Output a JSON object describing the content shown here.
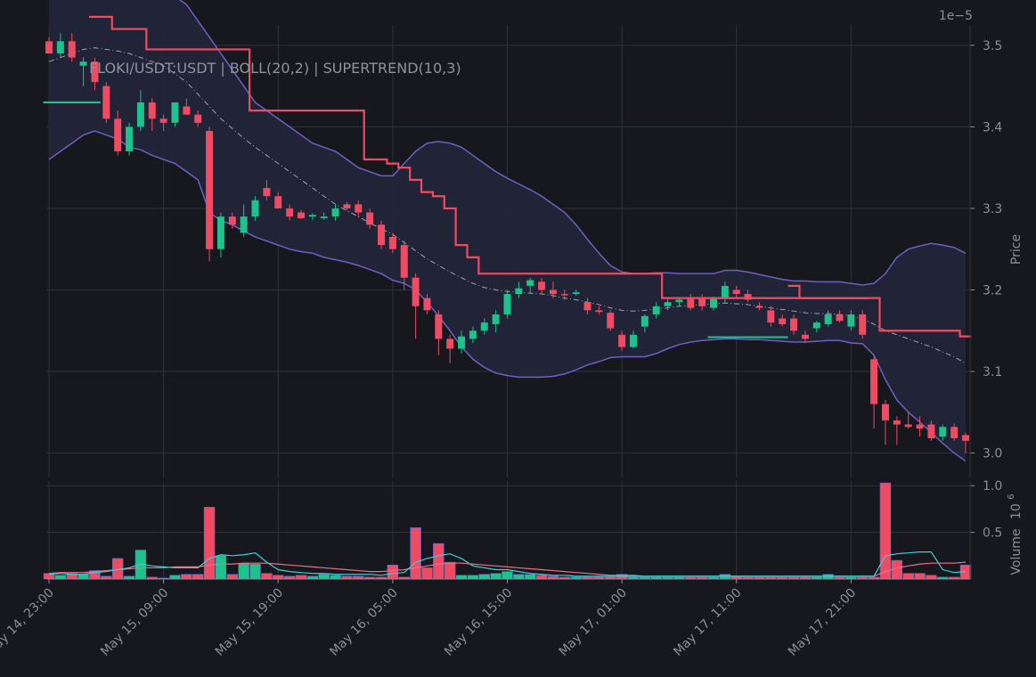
{
  "chart_data": {
    "type": "candlestick",
    "title": "FLOKI/USDT:USDT | BOLL(20,2) | SUPERTREND(10,3)",
    "price_panel": {
      "ylabel": "Price",
      "scale_note": "1e−5",
      "ylim": [
        2.97,
        3.525
      ],
      "yticks": [
        "3.0",
        "3.1",
        "3.2",
        "3.3",
        "3.4",
        "3.5"
      ]
    },
    "volume_panel": {
      "ylabel": "Volume",
      "scale_note": "10",
      "scale_exp": "6",
      "ylim": [
        0,
        1.05
      ],
      "yticks": [
        "0.5",
        "1.0"
      ]
    },
    "xlabels": [
      "May 14, 23:00",
      "May 15, 09:00",
      "May 15, 19:00",
      "May 16, 05:00",
      "May 16, 15:00",
      "May 17, 01:00",
      "May 17, 11:00",
      "May 17, 21:00"
    ],
    "xlabel_index": [
      0,
      10,
      20,
      30,
      40,
      50,
      60,
      70
    ],
    "candles": [
      [
        3.505,
        3.51,
        3.49,
        3.49
      ],
      [
        3.49,
        3.515,
        3.485,
        3.505
      ],
      [
        3.505,
        3.515,
        3.48,
        3.485
      ],
      [
        3.475,
        3.485,
        3.45,
        3.48
      ],
      [
        3.48,
        3.485,
        3.445,
        3.455
      ],
      [
        3.45,
        3.455,
        3.405,
        3.41
      ],
      [
        3.41,
        3.42,
        3.365,
        3.37
      ],
      [
        3.37,
        3.405,
        3.365,
        3.4
      ],
      [
        3.4,
        3.445,
        3.395,
        3.43
      ],
      [
        3.43,
        3.435,
        3.395,
        3.41
      ],
      [
        3.41,
        3.415,
        3.395,
        3.405
      ],
      [
        3.405,
        3.43,
        3.4,
        3.43
      ],
      [
        3.425,
        3.435,
        3.415,
        3.415
      ],
      [
        3.415,
        3.42,
        3.4,
        3.405
      ],
      [
        3.395,
        3.4,
        3.235,
        3.25
      ],
      [
        3.25,
        3.295,
        3.24,
        3.29
      ],
      [
        3.29,
        3.295,
        3.275,
        3.28
      ],
      [
        3.27,
        3.305,
        3.265,
        3.29
      ],
      [
        3.29,
        3.315,
        3.285,
        3.31
      ],
      [
        3.325,
        3.335,
        3.31,
        3.315
      ],
      [
        3.315,
        3.32,
        3.3,
        3.3
      ],
      [
        3.3,
        3.305,
        3.285,
        3.29
      ],
      [
        3.295,
        3.298,
        3.287,
        3.288
      ],
      [
        3.29,
        3.294,
        3.286,
        3.292
      ],
      [
        3.288,
        3.295,
        3.286,
        3.29
      ],
      [
        3.29,
        3.305,
        3.285,
        3.3
      ],
      [
        3.305,
        3.308,
        3.298,
        3.3
      ],
      [
        3.305,
        3.31,
        3.29,
        3.295
      ],
      [
        3.295,
        3.3,
        3.275,
        3.28
      ],
      [
        3.28,
        3.285,
        3.25,
        3.255
      ],
      [
        3.265,
        3.27,
        3.245,
        3.25
      ],
      [
        3.255,
        3.26,
        3.2,
        3.215
      ],
      [
        3.215,
        3.22,
        3.14,
        3.18
      ],
      [
        3.19,
        3.195,
        3.17,
        3.175
      ],
      [
        3.17,
        3.175,
        3.12,
        3.14
      ],
      [
        3.14,
        3.145,
        3.11,
        3.128
      ],
      [
        3.128,
        3.15,
        3.122,
        3.143
      ],
      [
        3.14,
        3.155,
        3.135,
        3.15
      ],
      [
        3.15,
        3.165,
        3.145,
        3.16
      ],
      [
        3.158,
        3.175,
        3.148,
        3.17
      ],
      [
        3.17,
        3.2,
        3.165,
        3.195
      ],
      [
        3.195,
        3.21,
        3.19,
        3.202
      ],
      [
        3.205,
        3.215,
        3.195,
        3.212
      ],
      [
        3.21,
        3.215,
        3.195,
        3.2
      ],
      [
        3.2,
        3.21,
        3.19,
        3.195
      ],
      [
        3.195,
        3.2,
        3.188,
        3.194
      ],
      [
        3.195,
        3.2,
        3.193,
        3.197
      ],
      [
        3.185,
        3.19,
        3.17,
        3.175
      ],
      [
        3.175,
        3.18,
        3.17,
        3.173
      ],
      [
        3.172,
        3.175,
        3.15,
        3.153
      ],
      [
        3.145,
        3.15,
        3.125,
        3.13
      ],
      [
        3.13,
        3.15,
        3.128,
        3.145
      ],
      [
        3.155,
        3.17,
        3.148,
        3.168
      ],
      [
        3.17,
        3.185,
        3.165,
        3.18
      ],
      [
        3.18,
        3.19,
        3.175,
        3.185
      ],
      [
        3.185,
        3.19,
        3.18,
        3.188
      ],
      [
        3.19,
        3.195,
        3.175,
        3.178
      ],
      [
        3.19,
        3.195,
        3.175,
        3.18
      ],
      [
        3.178,
        3.192,
        3.175,
        3.19
      ],
      [
        3.19,
        3.21,
        3.185,
        3.205
      ],
      [
        3.2,
        3.205,
        3.19,
        3.195
      ],
      [
        3.195,
        3.2,
        3.185,
        3.188
      ],
      [
        3.18,
        3.185,
        3.175,
        3.178
      ],
      [
        3.175,
        3.18,
        3.155,
        3.16
      ],
      [
        3.165,
        3.17,
        3.155,
        3.158
      ],
      [
        3.165,
        3.17,
        3.145,
        3.15
      ],
      [
        3.145,
        3.15,
        3.135,
        3.14
      ],
      [
        3.153,
        3.162,
        3.148,
        3.16
      ],
      [
        3.158,
        3.175,
        3.155,
        3.17
      ],
      [
        3.17,
        3.175,
        3.16,
        3.162
      ],
      [
        3.155,
        3.175,
        3.15,
        3.17
      ],
      [
        3.17,
        3.175,
        3.14,
        3.145
      ],
      [
        3.115,
        3.12,
        3.03,
        3.06
      ],
      [
        3.06,
        3.065,
        3.01,
        3.04
      ],
      [
        3.04,
        3.045,
        3.01,
        3.035
      ],
      [
        3.035,
        3.05,
        3.03,
        3.032
      ],
      [
        3.035,
        3.045,
        3.02,
        3.03
      ],
      [
        3.035,
        3.04,
        3.015,
        3.018
      ],
      [
        3.02,
        3.035,
        3.015,
        3.032
      ],
      [
        3.032,
        3.036,
        3.015,
        3.018
      ],
      [
        3.022,
        3.025,
        3.0,
        3.015
      ]
    ],
    "volume": [
      0.06,
      0.04,
      0.06,
      0.05,
      0.09,
      0.03,
      0.22,
      0.03,
      0.31,
      0.02,
      0.01,
      0.04,
      0.05,
      0.05,
      0.77,
      0.25,
      0.05,
      0.17,
      0.16,
      0.06,
      0.04,
      0.03,
      0.04,
      0.03,
      0.05,
      0.04,
      0.03,
      0.03,
      0.02,
      0.02,
      0.15,
      0.02,
      0.55,
      0.12,
      0.38,
      0.18,
      0.04,
      0.04,
      0.05,
      0.06,
      0.08,
      0.05,
      0.05,
      0.04,
      0.03,
      0.02,
      0.02,
      0.02,
      0.02,
      0.02,
      0.05,
      0.02,
      0.02,
      0.02,
      0.02,
      0.02,
      0.02,
      0.02,
      0.02,
      0.05,
      0.03,
      0.02,
      0.02,
      0.02,
      0.02,
      0.02,
      0.02,
      0.02,
      0.05,
      0.02,
      0.02,
      0.02,
      0.02,
      1.03,
      0.2,
      0.06,
      0.06,
      0.04,
      0.02,
      0.02,
      0.15
    ],
    "bollinger": {
      "upper": [
        3.56,
        3.57,
        3.58,
        3.59,
        3.6,
        3.6,
        3.6,
        3.6,
        3.59,
        3.58,
        3.57,
        3.56,
        3.55,
        3.53,
        3.51,
        3.49,
        3.47,
        3.45,
        3.43,
        3.42,
        3.41,
        3.4,
        3.39,
        3.38,
        3.375,
        3.37,
        3.36,
        3.35,
        3.345,
        3.34,
        3.34,
        3.355,
        3.37,
        3.38,
        3.382,
        3.38,
        3.375,
        3.365,
        3.355,
        3.345,
        3.337,
        3.33,
        3.323,
        3.315,
        3.305,
        3.295,
        3.28,
        3.262,
        3.245,
        3.23,
        3.222,
        3.22,
        3.22,
        3.221,
        3.221,
        3.22,
        3.22,
        3.22,
        3.22,
        3.224,
        3.224,
        3.222,
        3.219,
        3.216,
        3.213,
        3.211,
        3.211,
        3.21,
        3.21,
        3.21,
        3.208,
        3.206,
        3.208,
        3.22,
        3.24,
        3.25,
        3.254,
        3.257,
        3.255,
        3.252,
        3.245
      ],
      "middle": [
        3.48,
        3.485,
        3.49,
        3.495,
        3.497,
        3.495,
        3.493,
        3.49,
        3.485,
        3.48,
        3.475,
        3.465,
        3.455,
        3.44,
        3.425,
        3.41,
        3.398,
        3.386,
        3.375,
        3.365,
        3.355,
        3.345,
        3.335,
        3.325,
        3.315,
        3.305,
        3.297,
        3.29,
        3.282,
        3.275,
        3.268,
        3.258,
        3.248,
        3.238,
        3.23,
        3.222,
        3.215,
        3.208,
        3.203,
        3.2,
        3.198,
        3.197,
        3.196,
        3.195,
        3.193,
        3.19,
        3.188,
        3.185,
        3.182,
        3.178,
        3.175,
        3.174,
        3.175,
        3.177,
        3.178,
        3.18,
        3.181,
        3.182,
        3.183,
        3.184,
        3.183,
        3.182,
        3.18,
        3.178,
        3.176,
        3.174,
        3.172,
        3.171,
        3.171,
        3.17,
        3.168,
        3.165,
        3.158,
        3.15,
        3.145,
        3.14,
        3.135,
        3.13,
        3.124,
        3.118,
        3.11
      ],
      "lower": [
        3.36,
        3.37,
        3.38,
        3.39,
        3.395,
        3.39,
        3.385,
        3.375,
        3.372,
        3.365,
        3.36,
        3.355,
        3.345,
        3.335,
        3.295,
        3.285,
        3.28,
        3.272,
        3.265,
        3.26,
        3.255,
        3.25,
        3.247,
        3.245,
        3.24,
        3.237,
        3.234,
        3.23,
        3.225,
        3.22,
        3.212,
        3.208,
        3.2,
        3.185,
        3.168,
        3.15,
        3.13,
        3.115,
        3.105,
        3.098,
        3.095,
        3.093,
        3.093,
        3.093,
        3.094,
        3.097,
        3.102,
        3.108,
        3.112,
        3.117,
        3.118,
        3.118,
        3.118,
        3.122,
        3.128,
        3.133,
        3.136,
        3.138,
        3.139,
        3.14,
        3.14,
        3.139,
        3.139,
        3.138,
        3.137,
        3.136,
        3.136,
        3.137,
        3.138,
        3.138,
        3.135,
        3.134,
        3.12,
        3.09,
        3.065,
        3.05,
        3.038,
        3.025,
        3.012,
        3.0,
        2.99
      ]
    },
    "supertrend": {
      "segments": [
        {
          "trend": "up",
          "from": 0,
          "to": 4,
          "values": [
            3.43,
            3.43,
            3.43,
            3.43,
            3.43
          ]
        },
        {
          "trend": "down",
          "from": 4,
          "to": 71,
          "values": [
            3.535,
            3.535,
            3.52,
            3.52,
            3.52,
            3.495,
            3.495,
            3.495,
            3.495,
            3.495,
            3.495,
            3.495,
            3.495,
            3.495,
            3.42,
            3.42,
            3.42,
            3.42,
            3.42,
            3.42,
            3.42,
            3.42,
            3.42,
            3.42,
            3.36,
            3.36,
            3.355,
            3.35,
            3.335,
            3.32,
            3.315,
            3.3,
            3.255,
            3.24,
            3.22,
            3.22,
            3.22,
            3.22,
            3.22,
            3.22,
            3.22,
            3.22,
            3.22,
            3.22,
            3.22,
            3.22,
            3.22,
            3.22,
            3.22,
            3.22,
            3.19,
            3.19,
            3.19,
            3.19,
            3.19,
            3.19,
            3.19,
            3.19,
            3.19,
            3.19,
            3.19,
            3.19,
            3.19,
            3.19,
            3.19,
            3.19,
            3.19,
            3.19
          ]
        },
        {
          "trend": "up",
          "from": 58,
          "to": 64,
          "values": [
            3.142,
            3.142,
            3.142,
            3.142,
            3.142,
            3.142,
            3.142
          ]
        },
        {
          "trend": "down",
          "from": 65,
          "to": 80,
          "values": [
            3.205,
            3.19,
            3.19,
            3.19,
            3.19,
            3.19,
            3.19,
            3.19,
            3.15,
            3.15,
            3.15,
            3.15,
            3.15,
            3.15,
            3.15,
            3.143
          ]
        }
      ]
    },
    "volume_ma": {
      "fast": [
        0.05,
        0.06,
        0.05,
        0.05,
        0.07,
        0.08,
        0.1,
        0.12,
        0.16,
        0.14,
        0.13,
        0.12,
        0.12,
        0.12,
        0.22,
        0.26,
        0.25,
        0.26,
        0.28,
        0.18,
        0.1,
        0.08,
        0.07,
        0.06,
        0.06,
        0.05,
        0.05,
        0.05,
        0.05,
        0.04,
        0.06,
        0.07,
        0.18,
        0.22,
        0.25,
        0.27,
        0.22,
        0.14,
        0.12,
        0.1,
        0.1,
        0.08,
        0.06,
        0.05,
        0.04,
        0.04,
        0.03,
        0.03,
        0.03,
        0.03,
        0.03,
        0.03,
        0.03,
        0.03,
        0.03,
        0.03,
        0.03,
        0.03,
        0.03,
        0.03,
        0.03,
        0.03,
        0.03,
        0.03,
        0.03,
        0.03,
        0.03,
        0.03,
        0.03,
        0.03,
        0.03,
        0.03,
        0.03,
        0.25,
        0.27,
        0.28,
        0.29,
        0.29,
        0.1,
        0.07,
        0.08
      ],
      "slow": [
        0.06,
        0.07,
        0.07,
        0.07,
        0.08,
        0.09,
        0.1,
        0.11,
        0.12,
        0.12,
        0.12,
        0.13,
        0.13,
        0.13,
        0.15,
        0.16,
        0.16,
        0.17,
        0.17,
        0.17,
        0.16,
        0.15,
        0.14,
        0.13,
        0.12,
        0.11,
        0.1,
        0.09,
        0.08,
        0.08,
        0.09,
        0.1,
        0.12,
        0.14,
        0.16,
        0.17,
        0.17,
        0.16,
        0.15,
        0.14,
        0.13,
        0.12,
        0.11,
        0.1,
        0.09,
        0.08,
        0.07,
        0.06,
        0.05,
        0.04,
        0.04,
        0.04,
        0.03,
        0.03,
        0.03,
        0.03,
        0.03,
        0.03,
        0.03,
        0.03,
        0.03,
        0.03,
        0.03,
        0.03,
        0.03,
        0.03,
        0.03,
        0.03,
        0.03,
        0.03,
        0.03,
        0.03,
        0.03,
        0.08,
        0.12,
        0.14,
        0.16,
        0.17,
        0.17,
        0.17,
        0.18
      ]
    },
    "colors": {
      "up": "#1ec28b",
      "down": "#ef4b63",
      "band": "#6e5fc4",
      "band_fill": "#22253a",
      "middle": "#a0a4ad",
      "supertrend_up": "#1ec28b",
      "supertrend_down": "#ef4b63",
      "vol_fast": "#3ad0d6",
      "vol_slow": "#ef6e86",
      "grid": "#2e333b",
      "text": "#8a8f98",
      "background": "#16181d"
    },
    "grid": true
  }
}
